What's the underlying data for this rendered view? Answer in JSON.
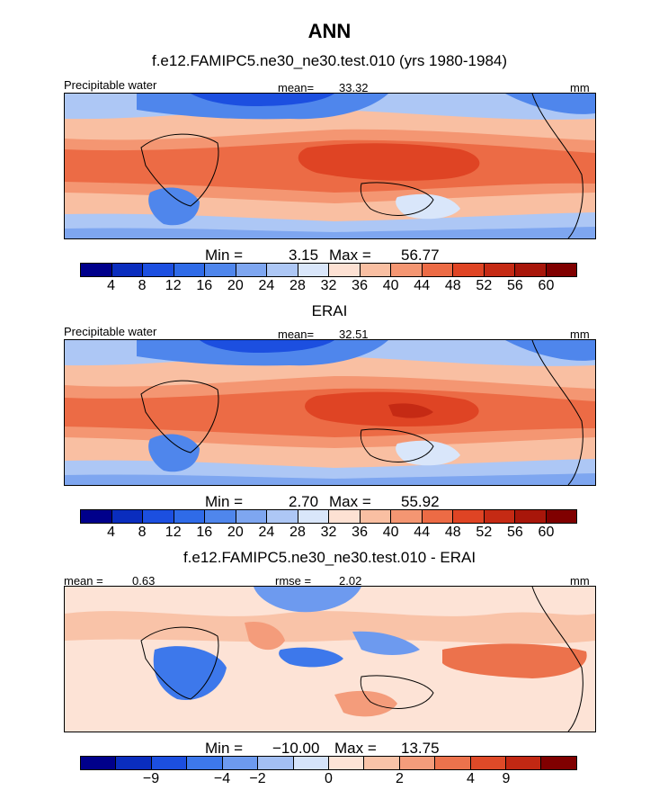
{
  "page_title": "ANN",
  "chart_data": [
    {
      "type": "heatmap",
      "title": "f.e12.FAMIPC5.ne30_ne30.test.010 (yrs 1980-1984)",
      "variable_label": "Precipitable water",
      "mean_label": "mean=",
      "mean_value": "33.32",
      "units": "mm",
      "min_label": "Min =",
      "min_value": "3.15",
      "max_label": "Max =",
      "max_value": "56.77",
      "colorbar_ticks": [
        "4",
        "8",
        "12",
        "16",
        "20",
        "24",
        "28",
        "32",
        "36",
        "40",
        "44",
        "48",
        "52",
        "56",
        "60"
      ],
      "colorbar_colors": [
        "#00008b",
        "#0a2dbe",
        "#1c4fe0",
        "#2f6be8",
        "#4f86ec",
        "#7ea6f0",
        "#adc7f5",
        "#d9e6fa",
        "#fde1d3",
        "#f9bfa2",
        "#f49672",
        "#ec6b45",
        "#df4424",
        "#c52a14",
        "#a8160a",
        "#800000"
      ],
      "field_mean": 33.32,
      "field_min": 3.15,
      "field_max": 56.77
    },
    {
      "type": "heatmap",
      "title": "ERAI",
      "variable_label": "Precipitable water",
      "mean_label": "mean=",
      "mean_value": "32.51",
      "units": "mm",
      "min_label": "Min =",
      "min_value": "2.70",
      "max_label": "Max =",
      "max_value": "55.92",
      "colorbar_ticks": [
        "4",
        "8",
        "12",
        "16",
        "20",
        "24",
        "28",
        "32",
        "36",
        "40",
        "44",
        "48",
        "52",
        "56",
        "60"
      ],
      "colorbar_colors": [
        "#00008b",
        "#0a2dbe",
        "#1c4fe0",
        "#2f6be8",
        "#4f86ec",
        "#7ea6f0",
        "#adc7f5",
        "#d9e6fa",
        "#fde1d3",
        "#f9bfa2",
        "#f49672",
        "#ec6b45",
        "#df4424",
        "#c52a14",
        "#a8160a",
        "#800000"
      ],
      "field_mean": 32.51,
      "field_min": 2.7,
      "field_max": 55.92
    },
    {
      "type": "heatmap",
      "title": "f.e12.FAMIPC5.ne30_ne30.test.010 - ERAI",
      "variable_label": "",
      "mean_label": "mean =",
      "mean_value": "0.63",
      "rmse_label": "rmse =",
      "rmse_value": "2.02",
      "units": "mm",
      "min_label": "Min =",
      "min_value": "−10.00",
      "max_label": "Max =",
      "max_value": "13.75",
      "colorbar_ticks": [
        "−9",
        "−4",
        "−2",
        "0",
        "2",
        "4",
        "9"
      ],
      "colorbar_colors": [
        "#00008b",
        "#0a2dbe",
        "#1c4fe0",
        "#3d78eb",
        "#6d9aef",
        "#a3bff4",
        "#d5e3fa",
        "#fde3d6",
        "#f9c3a8",
        "#f49c7b",
        "#ec724c",
        "#df4a28",
        "#c22813",
        "#800000"
      ],
      "field_mean": 0.63,
      "field_min": -10.0,
      "field_max": 13.75
    }
  ]
}
